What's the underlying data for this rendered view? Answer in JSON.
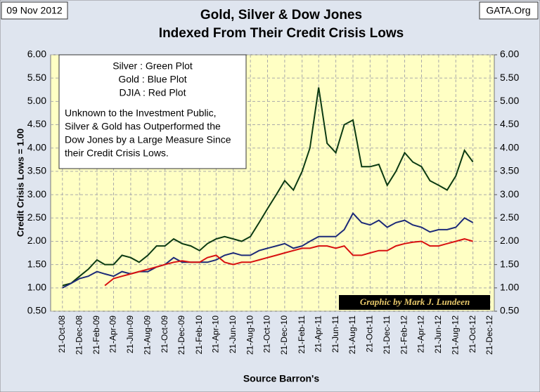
{
  "chart_data": {
    "type": "line",
    "title": [
      "Gold, Silver & Dow Jones",
      "Indexed From Their Credit Crisis Lows"
    ],
    "date_label": "09 Nov 2012",
    "source_label": "GATA.Org",
    "ylabel": "Credit Crisis Lows = 1.00",
    "xlabel": "Source Barron's",
    "annotations": [
      "Silver : Green Plot",
      "Gold : Blue Plot",
      "DJIA : Red Plot",
      "Unknown to the Investment Public,",
      "Silver & Gold has Outperformed the",
      "Dow Jones by a Large Measure Since",
      "their Credit Crisis Lows."
    ],
    "credit": "Graphic by Mark J. Lundeen",
    "x": [
      "2008-10-21",
      "2008-11-21",
      "2008-12-21",
      "2009-01-21",
      "2009-02-21",
      "2009-03-21",
      "2009-04-21",
      "2009-05-21",
      "2009-06-21",
      "2009-07-21",
      "2009-08-21",
      "2009-09-21",
      "2009-10-21",
      "2009-11-21",
      "2009-12-21",
      "2010-01-21",
      "2010-02-21",
      "2010-03-21",
      "2010-04-21",
      "2010-05-21",
      "2010-06-21",
      "2010-07-21",
      "2010-08-21",
      "2010-09-21",
      "2010-10-21",
      "2010-11-21",
      "2010-12-21",
      "2011-01-21",
      "2011-02-21",
      "2011-03-21",
      "2011-04-21",
      "2011-05-21",
      "2011-06-21",
      "2011-07-21",
      "2011-08-21",
      "2011-09-21",
      "2011-10-21",
      "2011-11-21",
      "2011-12-21",
      "2012-01-21",
      "2012-02-21",
      "2012-03-21",
      "2012-04-21",
      "2012-05-21",
      "2012-06-21",
      "2012-07-21",
      "2012-08-21",
      "2012-09-21",
      "2012-10-21"
    ],
    "series": [
      {
        "color": "#0b3a12",
        "values": [
          1.05,
          1.1,
          1.25,
          1.4,
          1.6,
          1.5,
          1.5,
          1.7,
          1.65,
          1.55,
          1.7,
          1.9,
          1.9,
          2.05,
          1.95,
          1.9,
          1.8,
          1.95,
          2.05,
          2.1,
          2.05,
          2.0,
          2.1,
          2.4,
          2.7,
          3.0,
          3.3,
          3.1,
          3.5,
          4.0,
          5.3,
          4.1,
          3.9,
          4.5,
          4.6,
          3.6,
          3.6,
          3.65,
          3.2,
          3.5,
          3.9,
          3.7,
          3.6,
          3.3,
          3.2,
          3.1,
          3.4,
          3.95,
          3.7
        ]
      },
      {
        "color": "#1c2a78",
        "values": [
          1.0,
          1.1,
          1.2,
          1.25,
          1.35,
          1.3,
          1.25,
          1.35,
          1.3,
          1.35,
          1.35,
          1.45,
          1.5,
          1.65,
          1.55,
          1.55,
          1.55,
          1.55,
          1.6,
          1.7,
          1.75,
          1.7,
          1.7,
          1.8,
          1.85,
          1.9,
          1.95,
          1.85,
          1.9,
          2.0,
          2.1,
          2.1,
          2.1,
          2.25,
          2.6,
          2.4,
          2.35,
          2.45,
          2.3,
          2.4,
          2.45,
          2.35,
          2.3,
          2.2,
          2.25,
          2.25,
          2.3,
          2.5,
          2.4
        ]
      },
      {
        "color": "#d81010",
        "values": [
          null,
          null,
          null,
          null,
          null,
          1.05,
          1.2,
          1.25,
          1.3,
          1.35,
          1.4,
          1.45,
          1.5,
          1.55,
          1.58,
          1.55,
          1.55,
          1.65,
          1.7,
          1.55,
          1.5,
          1.55,
          1.55,
          1.6,
          1.65,
          1.7,
          1.75,
          1.8,
          1.85,
          1.85,
          1.9,
          1.9,
          1.85,
          1.9,
          1.7,
          1.7,
          1.75,
          1.8,
          1.8,
          1.9,
          1.95,
          1.98,
          2.0,
          1.9,
          1.9,
          1.95,
          2.0,
          2.05,
          2.0
        ]
      }
    ],
    "xlim": [
      "2008-09-09",
      "2013-01-05"
    ],
    "xticks": [
      {
        "value": "2008-10-21",
        "label": "21-Oct-08"
      },
      {
        "value": "2008-12-21",
        "label": "21-Dec-08"
      },
      {
        "value": "2009-02-21",
        "label": "21-Feb-09"
      },
      {
        "value": "2009-04-21",
        "label": "21-Apr-09"
      },
      {
        "value": "2009-06-21",
        "label": "21-Jun-09"
      },
      {
        "value": "2009-08-21",
        "label": "21-Aug-09"
      },
      {
        "value": "2009-10-21",
        "label": "21-Oct-09"
      },
      {
        "value": "2009-12-21",
        "label": "21-Dec-09"
      },
      {
        "value": "2010-02-21",
        "label": "21-Feb-10"
      },
      {
        "value": "2010-04-21",
        "label": "21-Apr-10"
      },
      {
        "value": "2010-06-21",
        "label": "21-Jun-10"
      },
      {
        "value": "2010-08-21",
        "label": "21-Aug-10"
      },
      {
        "value": "2010-10-21",
        "label": "21-Oct-10"
      },
      {
        "value": "2010-12-21",
        "label": "21-Dec-10"
      },
      {
        "value": "2011-02-21",
        "label": "21-Feb-11"
      },
      {
        "value": "2011-04-21",
        "label": "21-Apr-11"
      },
      {
        "value": "2011-06-21",
        "label": "21-Jun-11"
      },
      {
        "value": "2011-08-21",
        "label": "21-Aug-11"
      },
      {
        "value": "2011-10-21",
        "label": "21-Oct-11"
      },
      {
        "value": "2011-12-21",
        "label": "21-Dec-11"
      },
      {
        "value": "2012-02-21",
        "label": "21-Feb-12"
      },
      {
        "value": "2012-04-21",
        "label": "21-Apr-12"
      },
      {
        "value": "2012-06-21",
        "label": "21-Jun-12"
      },
      {
        "value": "2012-08-21",
        "label": "21-Aug-12"
      },
      {
        "value": "2012-10-21",
        "label": "21-Oct-12"
      },
      {
        "value": "2012-12-21",
        "label": "21-Dec-12"
      }
    ],
    "ylim": [
      0.5,
      6
    ],
    "yticks": [
      {
        "value": 0.5,
        "label": "0.50"
      },
      {
        "value": 1,
        "label": "1.00"
      },
      {
        "value": 1.5,
        "label": "1.50"
      },
      {
        "value": 2,
        "label": "2.00"
      },
      {
        "value": 2.5,
        "label": "2.50"
      },
      {
        "value": 3,
        "label": "3.00"
      },
      {
        "value": 3.5,
        "label": "3.50"
      },
      {
        "value": 4,
        "label": "4.00"
      },
      {
        "value": 4.5,
        "label": "4.50"
      },
      {
        "value": 5,
        "label": "5.00"
      },
      {
        "value": 5.5,
        "label": "5.50"
      },
      {
        "value": 6,
        "label": "6.00"
      }
    ],
    "y2lim": [
      0.5,
      6
    ],
    "y2ticks": [
      {
        "value": 0.5,
        "label": "0.50"
      },
      {
        "value": 1,
        "label": "1.00"
      },
      {
        "value": 1.5,
        "label": "1.50"
      },
      {
        "value": 2,
        "label": "2.00"
      },
      {
        "value": 2.5,
        "label": "2.50"
      },
      {
        "value": 3,
        "label": "3.00"
      },
      {
        "value": 3.5,
        "label": "3.50"
      },
      {
        "value": 4,
        "label": "4.00"
      },
      {
        "value": 4.5,
        "label": "4.50"
      },
      {
        "value": 5,
        "label": "5.00"
      },
      {
        "value": 5.5,
        "label": "5.50"
      },
      {
        "value": 6,
        "label": "6.00"
      }
    ]
  }
}
